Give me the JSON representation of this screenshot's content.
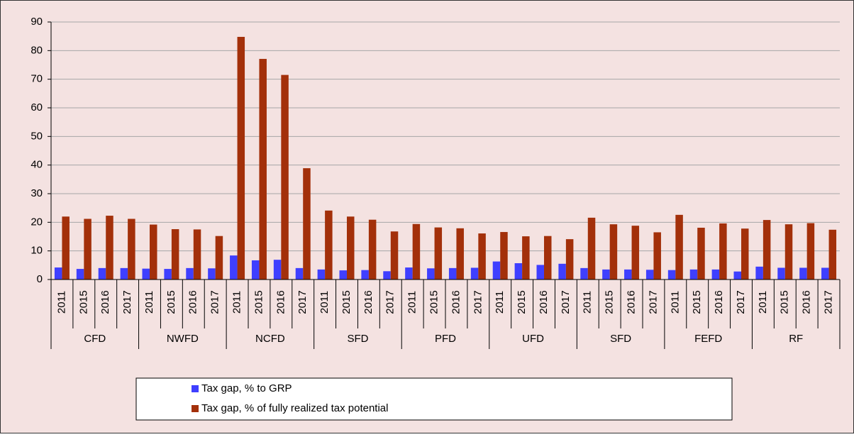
{
  "chart_data": {
    "type": "bar",
    "groups": [
      {
        "name": "CFD",
        "categories": [
          "2011",
          "2015",
          "2016",
          "2017"
        ]
      },
      {
        "name": "NWFD",
        "categories": [
          "2011",
          "2015",
          "2016",
          "2017"
        ]
      },
      {
        "name": "NCFD",
        "categories": [
          "2011",
          "2015",
          "2016",
          "2017"
        ]
      },
      {
        "name": "SFD",
        "categories": [
          "2011",
          "2015",
          "2016",
          "2017"
        ]
      },
      {
        "name": "PFD",
        "categories": [
          "2011",
          "2015",
          "2016",
          "2017"
        ]
      },
      {
        "name": "UFD",
        "categories": [
          "2011",
          "2015",
          "2016",
          "2017"
        ]
      },
      {
        "name": "SFD",
        "categories": [
          "2011",
          "2015",
          "2016",
          "2017"
        ]
      },
      {
        "name": "FEFD",
        "categories": [
          "2011",
          "2015",
          "2016",
          "2017"
        ]
      },
      {
        "name": "RF",
        "categories": [
          "2011",
          "2015",
          "2016",
          "2017"
        ]
      }
    ],
    "series": [
      {
        "name": "Tax gap, % to GRP",
        "color": "#3f3fff",
        "values": [
          4.2,
          3.7,
          4.0,
          4.0,
          3.8,
          3.7,
          4.0,
          3.9,
          8.4,
          6.7,
          6.9,
          4.0,
          3.5,
          3.2,
          3.3,
          2.9,
          4.2,
          3.9,
          4.0,
          4.1,
          6.3,
          5.7,
          5.1,
          5.5,
          4.0,
          3.5,
          3.5,
          3.4,
          3.3,
          3.5,
          3.5,
          2.8,
          4.5,
          4.1,
          4.1,
          4.1
        ]
      },
      {
        "name": "Tax gap, % of fully realized tax potential",
        "color": "#a3300a",
        "values": [
          22.0,
          21.2,
          22.3,
          21.2,
          19.2,
          17.6,
          17.5,
          15.2,
          84.8,
          77.1,
          71.5,
          38.9,
          24.1,
          22.0,
          20.9,
          16.8,
          19.4,
          18.2,
          17.9,
          16.1,
          16.6,
          15.1,
          15.2,
          14.1,
          21.6,
          19.3,
          18.8,
          16.5,
          22.6,
          18.1,
          19.6,
          17.8,
          20.8,
          19.3,
          19.7,
          17.4
        ]
      }
    ],
    "ylim": [
      0,
      90
    ],
    "yticks": [
      0,
      10,
      20,
      30,
      40,
      50,
      60,
      70,
      80,
      90
    ],
    "grid": true
  }
}
